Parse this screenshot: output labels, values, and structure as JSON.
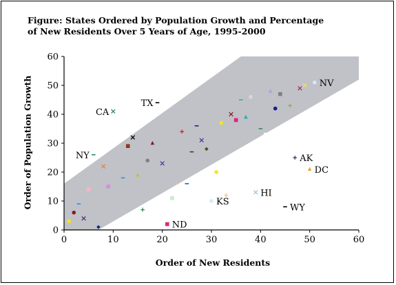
{
  "chart_data": {
    "type": "scatter",
    "title_lines": [
      "Figure: States Ordered by Population Growth and Percentage",
      "of New Residents Over 5 Years of Age, 1995-2000"
    ],
    "xlabel": "Order of New Residents",
    "ylabel": "Order of Population Growth",
    "xlim": [
      0,
      60
    ],
    "ylim": [
      0,
      60
    ],
    "xticks": [
      "0",
      "10",
      "20",
      "30",
      "40",
      "50",
      "60"
    ],
    "yticks": [
      "0",
      "10",
      "20",
      "30",
      "40",
      "50",
      "60"
    ],
    "grid": false,
    "legend": "none",
    "band": {
      "color": "#c0c2c8",
      "polygon": [
        [
          0,
          16
        ],
        [
          0,
          0
        ],
        [
          7,
          0
        ],
        [
          60,
          52
        ],
        [
          60,
          60
        ],
        [
          36,
          60
        ]
      ]
    },
    "labeled_points": [
      {
        "label": "NV",
        "x": 51,
        "y": 51,
        "marker": "circle",
        "color": "#d6eaf8"
      },
      {
        "label": "TX",
        "x": 19,
        "y": 44,
        "marker": "dash",
        "color": "#000000"
      },
      {
        "label": "CA",
        "x": 10,
        "y": 41,
        "marker": "x",
        "color": "#2e8b57"
      },
      {
        "label": "NY",
        "x": 6,
        "y": 26,
        "marker": "dash",
        "color": "#2e8b57"
      },
      {
        "label": "AK",
        "x": 47,
        "y": 25,
        "marker": "plus",
        "color": "#1f3a5a"
      },
      {
        "label": "DC",
        "x": 50,
        "y": 21,
        "marker": "triangle",
        "color": "#f0a030"
      },
      {
        "label": "HI",
        "x": 39,
        "y": 13,
        "marker": "x",
        "color": "#90c8f0"
      },
      {
        "label": "KS",
        "x": 30,
        "y": 10,
        "marker": "circle",
        "color": "#d6eaf8"
      },
      {
        "label": "WY",
        "x": 45,
        "y": 8,
        "marker": "dash",
        "color": "#000000"
      },
      {
        "label": "ND",
        "x": 21,
        "y": 2,
        "marker": "square",
        "color": "#e0237a"
      }
    ],
    "points": [
      {
        "x": 1,
        "y": 3,
        "marker": "circle",
        "color": "#f7e31e"
      },
      {
        "x": 2,
        "y": 6,
        "marker": "circle",
        "color": "#8b1a1a"
      },
      {
        "x": 3,
        "y": 9,
        "marker": "dash",
        "color": "#1e90ff"
      },
      {
        "x": 4,
        "y": 4,
        "marker": "x",
        "color": "#5a2d82"
      },
      {
        "x": 5,
        "y": 14,
        "marker": "square",
        "color": "#f4b6c2"
      },
      {
        "x": 7,
        "y": 1,
        "marker": "diamond",
        "color": "#1a237e"
      },
      {
        "x": 8,
        "y": 22,
        "marker": "x",
        "color": "#f08030"
      },
      {
        "x": 9,
        "y": 15,
        "marker": "square",
        "color": "#d48ee0"
      },
      {
        "x": 12,
        "y": 18,
        "marker": "dash",
        "color": "#1e90ff"
      },
      {
        "x": 13,
        "y": 29,
        "marker": "square",
        "color": "#8b3a1a"
      },
      {
        "x": 14,
        "y": 32,
        "marker": "x",
        "color": "#000000"
      },
      {
        "x": 15,
        "y": 19,
        "marker": "triangle",
        "color": "#a8d040"
      },
      {
        "x": 16,
        "y": 7,
        "marker": "plus",
        "color": "#2e8b57"
      },
      {
        "x": 17,
        "y": 24,
        "marker": "circle",
        "color": "#808080"
      },
      {
        "x": 18,
        "y": 30,
        "marker": "triangle",
        "color": "#8b1a1a"
      },
      {
        "x": 20,
        "y": 23,
        "marker": "x",
        "color": "#4040a0"
      },
      {
        "x": 22,
        "y": 11,
        "marker": "square",
        "color": "#cfe8d0"
      },
      {
        "x": 23,
        "y": 16,
        "marker": "dash",
        "color": "#f4c07a"
      },
      {
        "x": 24,
        "y": 34,
        "marker": "plus",
        "color": "#d0202a"
      },
      {
        "x": 25,
        "y": 16,
        "marker": "dash",
        "color": "#1e60c0"
      },
      {
        "x": 26,
        "y": 27,
        "marker": "dash",
        "color": "#1a4d2e"
      },
      {
        "x": 27,
        "y": 36,
        "marker": "dash",
        "color": "#1a1a8b"
      },
      {
        "x": 28,
        "y": 31,
        "marker": "x",
        "color": "#4040a0"
      },
      {
        "x": 29,
        "y": 28,
        "marker": "diamond",
        "color": "#4d4d1a"
      },
      {
        "x": 31,
        "y": 20,
        "marker": "circle",
        "color": "#f7e31e"
      },
      {
        "x": 32,
        "y": 37,
        "marker": "circle",
        "color": "#f7e31e"
      },
      {
        "x": 33,
        "y": 12,
        "marker": "plus",
        "color": "#f4c07a"
      },
      {
        "x": 34,
        "y": 40,
        "marker": "x",
        "color": "#8b1a1a"
      },
      {
        "x": 35,
        "y": 38,
        "marker": "square",
        "color": "#e0237a"
      },
      {
        "x": 36,
        "y": 45,
        "marker": "dash",
        "color": "#20b2aa"
      },
      {
        "x": 37,
        "y": 39,
        "marker": "triangle",
        "color": "#20b2aa"
      },
      {
        "x": 38,
        "y": 46,
        "marker": "circle",
        "color": "#d8d8d8"
      },
      {
        "x": 40,
        "y": 35,
        "marker": "dash",
        "color": "#2e8b57"
      },
      {
        "x": 41,
        "y": 33,
        "marker": "circle",
        "color": "#ffffff"
      },
      {
        "x": 42,
        "y": 48,
        "marker": "triangle",
        "color": "#b79cd9"
      },
      {
        "x": 43,
        "y": 42,
        "marker": "circle",
        "color": "#1a1a8b"
      },
      {
        "x": 44,
        "y": 47,
        "marker": "square",
        "color": "#808080"
      },
      {
        "x": 46,
        "y": 43,
        "marker": "plus",
        "color": "#8ab040"
      },
      {
        "x": 48,
        "y": 49,
        "marker": "x",
        "color": "#b03060"
      },
      {
        "x": 49,
        "y": 50,
        "marker": "x",
        "color": "#f4e04a"
      }
    ]
  }
}
